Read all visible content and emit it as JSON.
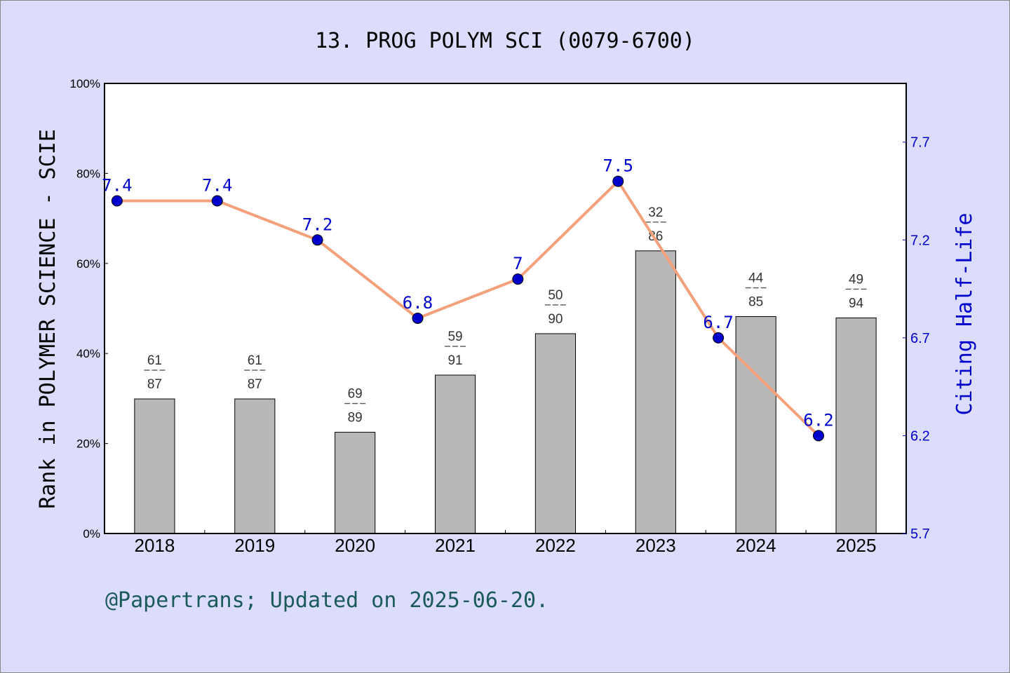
{
  "chart_data": {
    "type": "bar",
    "title": "13. PROG POLYM SCI (0079-6700)",
    "ylabel": "Rank in POLYMER SCIENCE - SCIE",
    "y2label": "Citing Half-Life",
    "categories": [
      "2018",
      "2019",
      "2020",
      "2021",
      "2022",
      "2023",
      "2024",
      "2025"
    ],
    "ylim": [
      0,
      100
    ],
    "yticks": [
      "0%",
      "20%",
      "40%",
      "60%",
      "80%",
      "100%"
    ],
    "y2lim": [
      5.7,
      8.0
    ],
    "y2ticks": [
      "5.7",
      "6.2",
      "6.7",
      "7.2",
      "7.7"
    ],
    "series": [
      {
        "type": "bar",
        "values": [
          29.9,
          29.9,
          22.5,
          35.2,
          44.4,
          62.8,
          48.2,
          47.9
        ],
        "rank": [
          "61",
          "61",
          "69",
          "59",
          "50",
          "32",
          "44",
          "49"
        ],
        "total": [
          "87",
          "87",
          "89",
          "91",
          "90",
          "86",
          "85",
          "94"
        ],
        "color": "#b8b8b8"
      },
      {
        "type": "line",
        "values": [
          7.4,
          7.4,
          7.2,
          6.8,
          7.0,
          7.5,
          6.7,
          6.2
        ],
        "labels": [
          "7.4",
          "7.4",
          "7.2",
          "6.8",
          "7",
          "7.5",
          "6.7",
          "6.2"
        ],
        "color": "#f4a07a",
        "marker_color": "#0000cc"
      }
    ],
    "grid": false,
    "footer": "@Papertrans; Updated on 2025-06-20."
  },
  "colors": {
    "background": "#dcdcfc",
    "bar": "#b8b8b8",
    "line": "#f4a07a",
    "marker": "#0000cc",
    "right_axis": "#0000cc",
    "footer": "#1a5a5a"
  }
}
